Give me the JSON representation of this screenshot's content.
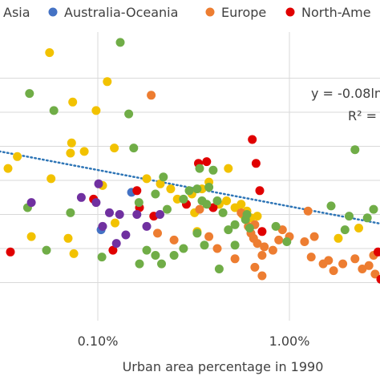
{
  "chart_data": {
    "type": "scatter",
    "xscale": "log",
    "xlabel": "Urban area percentage in 1990",
    "ylabel": "",
    "xticks": [
      {
        "value": 0.1,
        "label": "0.10%"
      },
      {
        "value": 1.0,
        "label": "1.00%"
      }
    ],
    "xlim": [
      0.02,
      4.4
    ],
    "ylim": [
      0,
      8
    ],
    "y_gridlines": [
      1,
      2,
      3,
      4,
      5,
      6,
      7
    ],
    "grid": true,
    "legend_position": "top",
    "legend": [
      {
        "name": "Asia",
        "color": "#F2C200"
      },
      {
        "name": "Australia-Oceania",
        "color": "#4472C4"
      },
      {
        "name": "Europe",
        "color": "#ED7D31"
      },
      {
        "name": "North-Ame",
        "color": "#E00000"
      }
    ],
    "extra_series_colors": {
      "green": "#70AD47",
      "purple": "#7030A0"
    },
    "trendline": {
      "equation": "y = -0.08ln",
      "r2": "R² =",
      "color": "#2E75B6",
      "style": "dotted",
      "points": [
        [
          0.02,
          5.05
        ],
        [
          4.4,
          2.55
        ]
      ]
    },
    "series": [
      {
        "name": "Asia",
        "color": "#F2C200",
        "points": [
          [
            0.056,
            7.75
          ],
          [
            0.112,
            6.9
          ],
          [
            0.023,
            6.55
          ],
          [
            0.074,
            6.3
          ],
          [
            0.098,
            6.05
          ],
          [
            0.022,
            5.45
          ],
          [
            0.073,
            5.1
          ],
          [
            0.025,
            5.25
          ],
          [
            0.029,
            5.0
          ],
          [
            0.085,
            4.85
          ],
          [
            0.122,
            4.95
          ],
          [
            0.038,
            4.7
          ],
          [
            0.034,
            4.35
          ],
          [
            0.072,
            4.8
          ],
          [
            0.057,
            4.05
          ],
          [
            0.106,
            3.85
          ],
          [
            0.18,
            4.05
          ],
          [
            0.212,
            3.9
          ],
          [
            0.24,
            3.75
          ],
          [
            0.26,
            3.45
          ],
          [
            0.31,
            3.6
          ],
          [
            0.35,
            3.75
          ],
          [
            0.38,
            3.95
          ],
          [
            0.43,
            3.3
          ],
          [
            0.47,
            3.4
          ],
          [
            0.52,
            3.2
          ],
          [
            0.57,
            3.0
          ],
          [
            0.6,
            3.1
          ],
          [
            0.63,
            2.9
          ],
          [
            0.68,
            2.95
          ],
          [
            0.028,
            1.8
          ],
          [
            0.045,
            2.35
          ],
          [
            0.07,
            2.3
          ],
          [
            0.075,
            1.85
          ],
          [
            0.123,
            2.75
          ],
          [
            0.32,
            3.05
          ],
          [
            0.33,
            2.5
          ],
          [
            0.48,
            4.35
          ],
          [
            1.8,
            2.3
          ],
          [
            2.3,
            2.6
          ],
          [
            4.3,
            2.55
          ],
          [
            0.56,
            3.3
          ]
        ]
      },
      {
        "name": "Australia-Oceania",
        "color": "#4472C4",
        "points": [
          [
            0.104,
            2.55
          ],
          [
            0.15,
            3.65
          ]
        ]
      },
      {
        "name": "Europe",
        "color": "#ED7D31",
        "points": [
          [
            0.19,
            6.5
          ],
          [
            0.205,
            2.45
          ],
          [
            0.25,
            2.25
          ],
          [
            0.56,
            3.05
          ],
          [
            0.61,
            2.65
          ],
          [
            0.63,
            2.45
          ],
          [
            0.66,
            2.7
          ],
          [
            0.68,
            2.15
          ],
          [
            0.72,
            1.8
          ],
          [
            0.74,
            2.05
          ],
          [
            0.82,
            1.95
          ],
          [
            0.88,
            2.25
          ],
          [
            0.92,
            2.55
          ],
          [
            1.0,
            2.35
          ],
          [
            1.2,
            2.2
          ],
          [
            1.3,
            1.75
          ],
          [
            1.35,
            2.35
          ],
          [
            1.5,
            1.55
          ],
          [
            1.6,
            1.65
          ],
          [
            1.7,
            1.35
          ],
          [
            1.9,
            1.55
          ],
          [
            2.2,
            1.7
          ],
          [
            2.4,
            1.4
          ],
          [
            2.6,
            1.5
          ],
          [
            2.8,
            1.25
          ],
          [
            3.1,
            1.85
          ],
          [
            3.4,
            1.45
          ],
          [
            3.8,
            1.65
          ],
          [
            4.1,
            1.35
          ],
          [
            4.3,
            1.95
          ],
          [
            0.34,
            3.15
          ],
          [
            0.42,
            2.0
          ],
          [
            0.52,
            1.7
          ],
          [
            0.66,
            1.45
          ],
          [
            0.72,
            1.2
          ],
          [
            1.25,
            3.1
          ],
          [
            2.75,
            1.8
          ],
          [
            3.55,
            1.05
          ],
          [
            0.38,
            2.35
          ],
          [
            0.65,
            2.3
          ]
        ]
      },
      {
        "name": "North-Ame",
        "color": "#E00000",
        "points": [
          [
            0.64,
            5.2
          ],
          [
            0.035,
            1.9
          ],
          [
            0.095,
            3.45
          ],
          [
            0.16,
            3.7
          ],
          [
            0.165,
            3.2
          ],
          [
            0.196,
            2.95
          ],
          [
            0.29,
            3.3
          ],
          [
            0.335,
            4.5
          ],
          [
            0.37,
            4.55
          ],
          [
            0.4,
            3.2
          ],
          [
            0.67,
            4.5
          ],
          [
            0.7,
            3.7
          ],
          [
            0.72,
            2.5
          ],
          [
            2.9,
            1.9
          ],
          [
            0.12,
            1.95
          ],
          [
            3.0,
            1.1
          ],
          [
            3.5,
            1.4
          ],
          [
            3.7,
            1.8
          ],
          [
            4.35,
            2.1
          ]
        ]
      },
      {
        "name": "green",
        "color": "#70AD47",
        "points": [
          [
            0.022,
            6.1
          ],
          [
            0.025,
            5.7
          ],
          [
            0.044,
            6.55
          ],
          [
            0.059,
            6.05
          ],
          [
            0.131,
            8.05
          ],
          [
            0.145,
            5.95
          ],
          [
            0.154,
            4.95
          ],
          [
            0.164,
            3.35
          ],
          [
            0.2,
            3.6
          ],
          [
            0.22,
            4.1
          ],
          [
            0.23,
            3.15
          ],
          [
            0.28,
            3.45
          ],
          [
            0.3,
            3.7
          ],
          [
            0.33,
            3.75
          ],
          [
            0.34,
            4.35
          ],
          [
            0.35,
            3.4
          ],
          [
            0.37,
            3.3
          ],
          [
            0.38,
            3.8
          ],
          [
            0.4,
            4.3
          ],
          [
            0.42,
            3.4
          ],
          [
            0.45,
            3.05
          ],
          [
            0.48,
            2.55
          ],
          [
            0.52,
            2.7
          ],
          [
            0.59,
            2.85
          ],
          [
            0.62,
            2.6
          ],
          [
            0.6,
            3.0
          ],
          [
            0.022,
            3.45
          ],
          [
            0.054,
            1.95
          ],
          [
            0.043,
            3.2
          ],
          [
            0.072,
            3.05
          ],
          [
            0.105,
            1.75
          ],
          [
            0.165,
            1.55
          ],
          [
            0.18,
            1.95
          ],
          [
            0.2,
            1.8
          ],
          [
            0.25,
            1.8
          ],
          [
            0.28,
            2.0
          ],
          [
            0.33,
            2.45
          ],
          [
            0.36,
            2.1
          ],
          [
            0.43,
            1.4
          ],
          [
            0.52,
            2.1
          ],
          [
            0.85,
            2.65
          ],
          [
            0.97,
            2.2
          ],
          [
            1.65,
            3.25
          ],
          [
            1.95,
            2.55
          ],
          [
            2.05,
            2.95
          ],
          [
            2.55,
            2.9
          ],
          [
            2.75,
            3.15
          ],
          [
            3.4,
            2.6
          ],
          [
            3.7,
            2.55
          ],
          [
            4.2,
            2.35
          ],
          [
            4.3,
            2.05
          ],
          [
            2.2,
            4.9
          ],
          [
            0.018,
            5.1
          ],
          [
            0.215,
            1.55
          ]
        ]
      },
      {
        "name": "purple",
        "color": "#7030A0",
        "points": [
          [
            0.022,
            2.95
          ],
          [
            0.045,
            3.35
          ],
          [
            0.082,
            3.5
          ],
          [
            0.098,
            3.35
          ],
          [
            0.106,
            2.65
          ],
          [
            0.101,
            3.9
          ],
          [
            0.115,
            3.05
          ],
          [
            0.125,
            2.15
          ],
          [
            0.13,
            3.0
          ],
          [
            0.14,
            2.4
          ],
          [
            0.16,
            3.0
          ],
          [
            0.18,
            2.65
          ],
          [
            0.211,
            3.0
          ]
        ]
      }
    ]
  }
}
